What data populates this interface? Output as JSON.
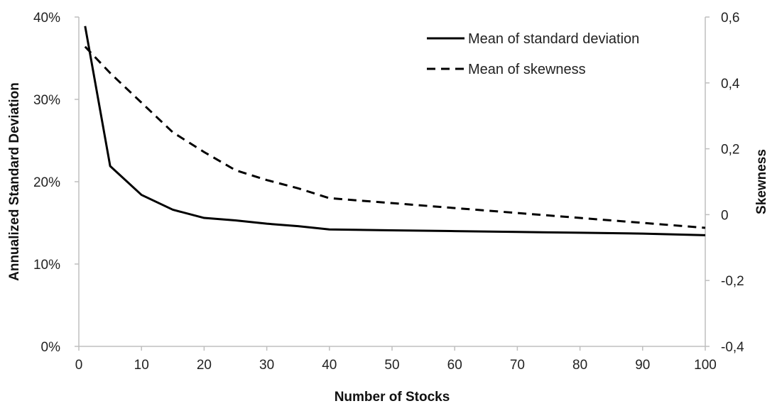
{
  "chart_data": {
    "type": "line",
    "xlabel": "Number of Stocks",
    "ylabel": "Annualized Standard Deviation",
    "y2label": "Skewness",
    "xlim": [
      0,
      100
    ],
    "ylim": [
      0,
      40
    ],
    "y2lim": [
      -0.4,
      0.6
    ],
    "x_ticks": [
      0,
      10,
      20,
      30,
      40,
      50,
      60,
      70,
      80,
      90,
      100
    ],
    "x_tick_labels": [
      "0",
      "10",
      "20",
      "30",
      "40",
      "50",
      "60",
      "70",
      "80",
      "90",
      "100"
    ],
    "y_ticks": [
      0,
      10,
      20,
      30,
      40
    ],
    "y_tick_labels": [
      "0%",
      "10%",
      "20%",
      "30%",
      "40%"
    ],
    "y2_ticks": [
      -0.4,
      -0.2,
      0,
      0.2,
      0.4,
      0.6
    ],
    "y2_tick_labels": [
      "-0,4",
      "-0,2",
      "0",
      "0,2",
      "0,4",
      "0,6"
    ],
    "grid": false,
    "legend_position": "top-right",
    "series": [
      {
        "name": "Mean of standard deviation",
        "axis": "left",
        "style": "solid",
        "color": "#000000",
        "x": [
          1,
          5,
          10,
          15,
          20,
          25,
          30,
          35,
          40,
          50,
          60,
          70,
          80,
          90,
          100
        ],
        "y": [
          38.9,
          21.9,
          18.4,
          16.6,
          15.6,
          15.3,
          14.9,
          14.6,
          14.2,
          14.1,
          14.0,
          13.9,
          13.8,
          13.7,
          13.5
        ]
      },
      {
        "name": "Mean of skewness",
        "axis": "right",
        "style": "dashed",
        "color": "#000000",
        "x": [
          1,
          5,
          10,
          15,
          20,
          25,
          30,
          35,
          40,
          50,
          60,
          70,
          80,
          90,
          100
        ],
        "y": [
          0.51,
          0.43,
          0.34,
          0.25,
          0.19,
          0.135,
          0.105,
          0.08,
          0.05,
          0.035,
          0.02,
          0.005,
          -0.01,
          -0.025,
          -0.04
        ]
      }
    ]
  }
}
